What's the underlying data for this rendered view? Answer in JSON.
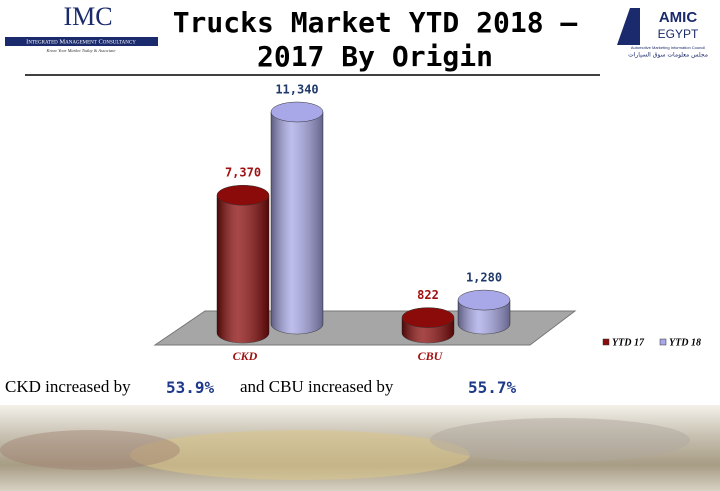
{
  "logo_left": {
    "name": "IMC",
    "line": "Integrated Management Consultancy",
    "tagline": "Know Your Market Today & Associate"
  },
  "logo_right": {
    "name": "AMIC",
    "sub": "EGYPT",
    "line": "Automotive Marketing Information Council",
    "arabic": "مجلس معلومات سوق السيارات"
  },
  "chart_data": {
    "type": "bar3d",
    "title": "Trucks Market YTD 2018 – 2017 By Origin",
    "categories": [
      "CKD",
      "CBU"
    ],
    "series": [
      {
        "name": "YTD 17",
        "color": "#8b0a0a",
        "values": [
          7370,
          822
        ],
        "value_labels": [
          "7,370",
          "822"
        ]
      },
      {
        "name": "YTD 18",
        "color": "#a8a8e8",
        "values": [
          11340,
          1280
        ],
        "value_labels": [
          "11,340",
          "1,280"
        ]
      }
    ],
    "ylim": [
      0,
      11340
    ],
    "legend": "right"
  },
  "footer": {
    "text1": "CKD increased by",
    "pct1": "53.9%",
    "text2": "and CBU increased by",
    "pct2": "55.7%"
  }
}
